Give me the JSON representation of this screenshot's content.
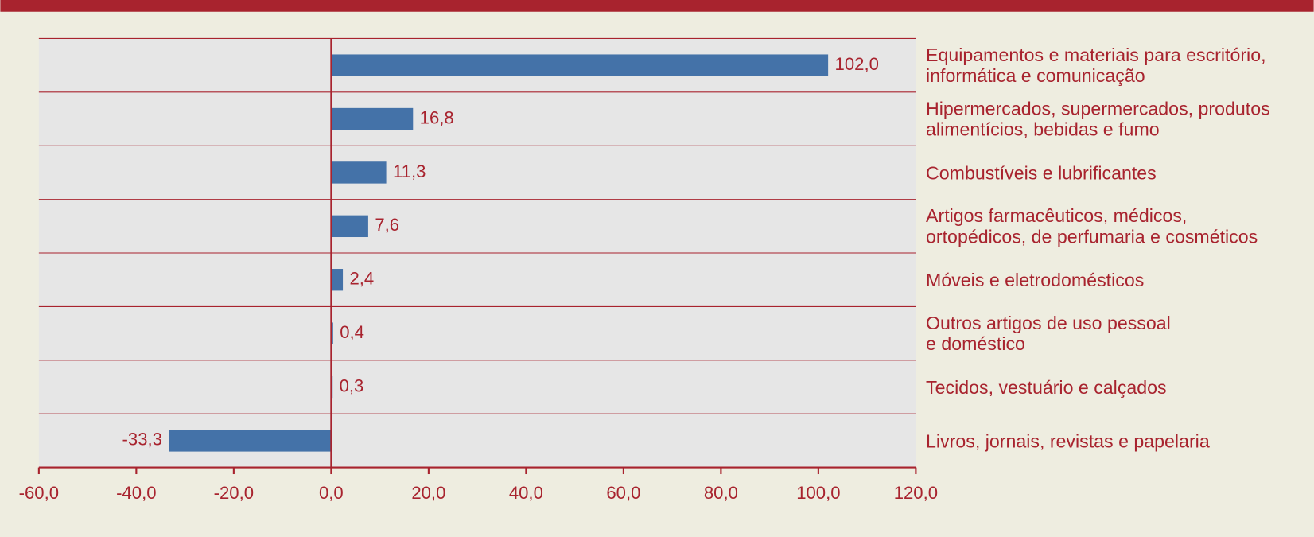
{
  "chart_data": {
    "type": "barh",
    "categories": [
      "Equipamentos e materiais para escritório,\ninformática e comunicação",
      "Hipermercados, supermercados, produtos\nalimentícios, bebidas e fumo",
      "Combustíveis e lubrificantes",
      "Artigos farmacêuticos, médicos,\nortopédicos, de perfumaria e cosméticos",
      "Móveis e eletrodomésticos",
      "Outros artigos de uso pessoal\ne doméstico",
      "Tecidos, vestuário e calçados",
      "Livros, jornais, revistas e papelaria"
    ],
    "values": [
      102.0,
      16.8,
      11.3,
      7.6,
      2.4,
      0.4,
      0.3,
      -33.3
    ],
    "value_labels": [
      "102,0",
      "16,8",
      "11,3",
      "7,6",
      "2,4",
      "0,4",
      "0,3",
      "-33,3"
    ],
    "color": "#4472a8",
    "xlim": [
      -60,
      120
    ],
    "xticks": [
      {
        "value": -60,
        "label": "-60,0"
      },
      {
        "value": -40,
        "label": "-40,0"
      },
      {
        "value": -20,
        "label": "-20,0"
      },
      {
        "value": 0,
        "label": "0,0"
      },
      {
        "value": 20,
        "label": "20,0"
      },
      {
        "value": 40,
        "label": "40,0"
      },
      {
        "value": 60,
        "label": "60,0"
      },
      {
        "value": 80,
        "label": "80,0"
      },
      {
        "value": 100,
        "label": "100,0"
      },
      {
        "value": 120,
        "label": "120,0"
      }
    ]
  }
}
